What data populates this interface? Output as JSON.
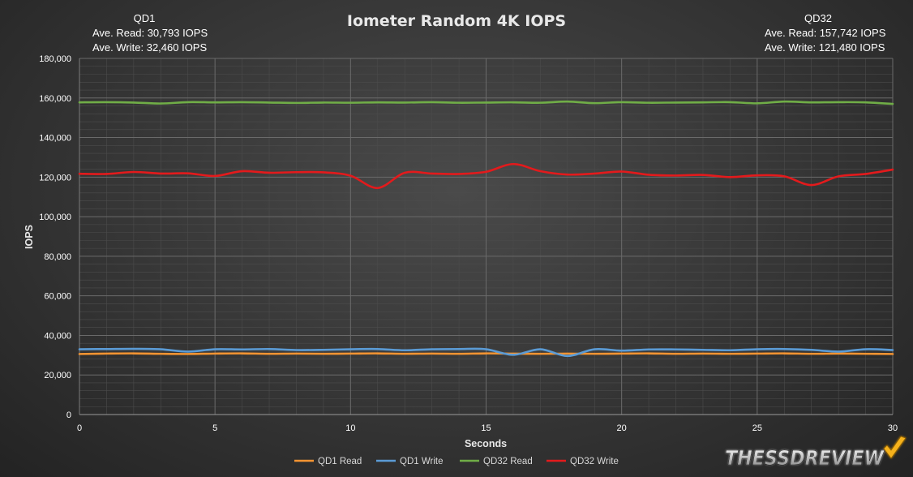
{
  "chart_data": {
    "type": "line",
    "title": "Iometer Random 4K IOPS",
    "xlabel": "Seconds",
    "ylabel": "IOPS",
    "xlim": [
      0,
      30
    ],
    "ylim": [
      0,
      180000
    ],
    "x_ticks": [
      0,
      5,
      10,
      15,
      20,
      25,
      30
    ],
    "y_ticks": [
      0,
      20000,
      40000,
      60000,
      80000,
      100000,
      120000,
      140000,
      160000,
      180000
    ],
    "y_tick_labels": [
      "0",
      "20,000",
      "40,000",
      "60,000",
      "80,000",
      "100,000",
      "120,000",
      "140,000",
      "160,000",
      "180,000"
    ],
    "grid": true,
    "legend_position": "bottom",
    "x": [
      0,
      1,
      2,
      3,
      4,
      5,
      6,
      7,
      8,
      9,
      10,
      11,
      12,
      13,
      14,
      15,
      16,
      17,
      18,
      19,
      20,
      21,
      22,
      23,
      24,
      25,
      26,
      27,
      28,
      29,
      30
    ],
    "series": [
      {
        "name": "QD1 Read",
        "color": "#f39432",
        "values": [
          30600,
          30800,
          30900,
          30700,
          30600,
          30800,
          30900,
          30700,
          30800,
          30700,
          30800,
          30900,
          30700,
          30800,
          30700,
          30900,
          30800,
          30700,
          30800,
          30700,
          30800,
          30900,
          30700,
          30800,
          30700,
          30800,
          30900,
          30700,
          30800,
          30700,
          30600
        ]
      },
      {
        "name": "QD1 Write",
        "color": "#5b9bd5",
        "values": [
          33000,
          33100,
          33200,
          33000,
          31800,
          33000,
          32900,
          33100,
          32600,
          32700,
          33000,
          33100,
          32500,
          33000,
          33100,
          33000,
          30200,
          33000,
          29600,
          33000,
          32300,
          32900,
          32900,
          32700,
          32500,
          33000,
          33100,
          32700,
          31800,
          33000,
          32600
        ]
      },
      {
        "name": "QD32 Read",
        "color": "#70ad47",
        "values": [
          157800,
          157900,
          157700,
          157200,
          157900,
          157800,
          157900,
          157700,
          157500,
          157700,
          157600,
          157800,
          157700,
          157900,
          157600,
          157700,
          157800,
          157600,
          158200,
          157400,
          157900,
          157600,
          157700,
          157800,
          157900,
          157300,
          158200,
          157800,
          157900,
          157800,
          157000
        ]
      },
      {
        "name": "QD32 Write",
        "color": "#e31a1c",
        "values": [
          121700,
          121600,
          122600,
          121800,
          121900,
          120600,
          123000,
          122200,
          122500,
          122400,
          120700,
          114500,
          122200,
          121800,
          121600,
          122700,
          126600,
          123000,
          121300,
          121800,
          122800,
          121200,
          120800,
          121100,
          120000,
          120900,
          120400,
          116000,
          120400,
          121600,
          123800
        ]
      }
    ],
    "annotations": {
      "left": {
        "heading": "QD1",
        "read": "Ave. Read: 30,793  IOPS",
        "write": "Ave. Write: 32,460  IOPS"
      },
      "right": {
        "heading": "QD32",
        "read": "Ave. Read: 157,742  IOPS",
        "write": "Ave. Write: 121,480  IOPS"
      }
    }
  },
  "logo": {
    "text": "THESSDREVIEW"
  }
}
